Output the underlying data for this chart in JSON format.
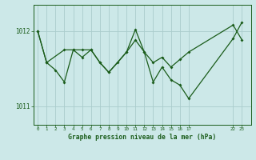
{
  "bg_color": "#cce8e8",
  "plot_bg_color": "#cce8e8",
  "line_color": "#1a5c1a",
  "grid_color": "#aacccc",
  "title": "Graphe pression niveau de la mer (hPa)",
  "series1_x": [
    0,
    1,
    3,
    4,
    5,
    6,
    7,
    8,
    10,
    11,
    12,
    13,
    14,
    15,
    16,
    17,
    22,
    23
  ],
  "series1_y": [
    1012.0,
    1011.58,
    1011.75,
    1011.75,
    1011.65,
    1011.75,
    1011.58,
    1011.45,
    1011.72,
    1011.88,
    1011.72,
    1011.58,
    1011.65,
    1011.52,
    1011.62,
    1011.72,
    1012.08,
    1011.88
  ],
  "series2_x": [
    0,
    1,
    2,
    3,
    4,
    5,
    6,
    7,
    8,
    9,
    10,
    11,
    12,
    13,
    14,
    15,
    16,
    17,
    22,
    23
  ],
  "series2_y": [
    1012.0,
    1011.58,
    1011.48,
    1011.32,
    1011.75,
    1011.75,
    1011.75,
    1011.58,
    1011.45,
    1011.58,
    1011.72,
    1012.02,
    1011.72,
    1011.32,
    1011.52,
    1011.35,
    1011.28,
    1011.1,
    1011.9,
    1012.12
  ],
  "yticks": [
    1011,
    1012
  ],
  "ylim": [
    1010.75,
    1012.35
  ],
  "xlim": [
    -0.5,
    24.0
  ],
  "x_ticks_dense": [
    0,
    1,
    2,
    3,
    4,
    5,
    6,
    7,
    8,
    9,
    10,
    11,
    12,
    13,
    14,
    15,
    16,
    17
  ],
  "x_ticks_sparse": [
    22,
    23
  ]
}
